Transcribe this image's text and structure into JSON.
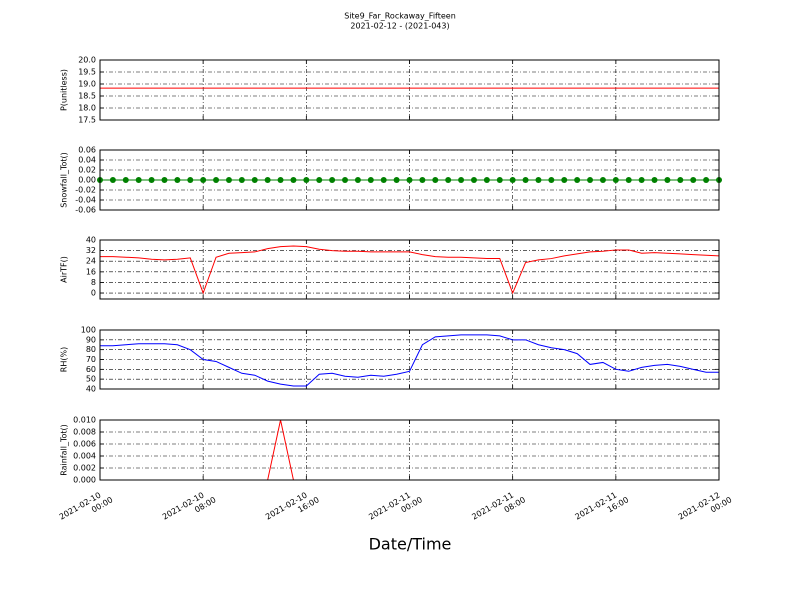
{
  "chart_data": [
    {
      "type": "line",
      "title": "Site9_Far_Rockaway_Fifteen",
      "subtitle": "2021-02-12 - (2021-043)",
      "ylabel": "P(unitless)",
      "color": "#ff0000",
      "grid": true,
      "ylim": [
        17.5,
        20
      ],
      "yticks": [
        17.5,
        {
          "value": 18,
          "label": "18.0"
        },
        18.5,
        {
          "value": 19,
          "label": "19.0"
        },
        19.5,
        {
          "value": 20,
          "label": "20.0"
        }
      ],
      "x": [
        "2021-02-10 00:00",
        "2021-02-10 01:00",
        "2021-02-10 02:00",
        "2021-02-10 03:00",
        "2021-02-10 04:00",
        "2021-02-10 05:00",
        "2021-02-10 06:00",
        "2021-02-10 07:00",
        "2021-02-10 08:00",
        "2021-02-10 09:00",
        "2021-02-10 10:00",
        "2021-02-10 11:00",
        "2021-02-10 12:00",
        "2021-02-10 13:00",
        "2021-02-10 14:00",
        "2021-02-10 15:00",
        "2021-02-10 16:00",
        "2021-02-10 17:00",
        "2021-02-10 18:00",
        "2021-02-10 19:00",
        "2021-02-10 20:00",
        "2021-02-10 21:00",
        "2021-02-10 22:00",
        "2021-02-10 23:00",
        "2021-02-11 00:00",
        "2021-02-11 01:00",
        "2021-02-11 02:00",
        "2021-02-11 03:00",
        "2021-02-11 04:00",
        "2021-02-11 05:00",
        "2021-02-11 06:00",
        "2021-02-11 07:00",
        "2021-02-11 08:00",
        "2021-02-11 09:00",
        "2021-02-11 10:00",
        "2021-02-11 11:00",
        "2021-02-11 12:00",
        "2021-02-11 13:00",
        "2021-02-11 14:00",
        "2021-02-11 15:00",
        "2021-02-11 16:00",
        "2021-02-11 17:00",
        "2021-02-11 18:00",
        "2021-02-11 19:00",
        "2021-02-11 20:00",
        "2021-02-11 21:00",
        "2021-02-11 22:00",
        "2021-02-11 23:00",
        "2021-02-12 00:00"
      ],
      "values": [
        18.83,
        18.83,
        18.83,
        18.83,
        18.83,
        18.83,
        18.83,
        18.83,
        18.83,
        18.83,
        18.83,
        18.83,
        18.83,
        18.83,
        18.83,
        18.83,
        18.83,
        18.83,
        18.83,
        18.83,
        18.83,
        18.83,
        18.83,
        18.83,
        18.83,
        18.83,
        18.83,
        18.83,
        18.83,
        18.83,
        18.83,
        18.83,
        18.83,
        18.83,
        18.83,
        18.83,
        18.83,
        18.83,
        18.83,
        18.83,
        18.83,
        18.83,
        18.83,
        18.83,
        18.83,
        18.83,
        18.83,
        18.83,
        18.83
      ]
    },
    {
      "type": "line",
      "marker": true,
      "ylabel": "Snowfall_Tot()",
      "color": "#008000",
      "grid": true,
      "ylim": [
        -0.06,
        0.06
      ],
      "yticks": [
        -0.06,
        -0.04,
        -0.02,
        {
          "value": 0,
          "label": "0.00"
        },
        0.02,
        0.04,
        0.06
      ],
      "x": [
        "2021-02-10 00:00",
        "2021-02-10 01:00",
        "2021-02-10 02:00",
        "2021-02-10 03:00",
        "2021-02-10 04:00",
        "2021-02-10 05:00",
        "2021-02-10 06:00",
        "2021-02-10 07:00",
        "2021-02-10 08:00",
        "2021-02-10 09:00",
        "2021-02-10 10:00",
        "2021-02-10 11:00",
        "2021-02-10 12:00",
        "2021-02-10 13:00",
        "2021-02-10 14:00",
        "2021-02-10 15:00",
        "2021-02-10 16:00",
        "2021-02-10 17:00",
        "2021-02-10 18:00",
        "2021-02-10 19:00",
        "2021-02-10 20:00",
        "2021-02-10 21:00",
        "2021-02-10 22:00",
        "2021-02-10 23:00",
        "2021-02-11 00:00",
        "2021-02-11 01:00",
        "2021-02-11 02:00",
        "2021-02-11 03:00",
        "2021-02-11 04:00",
        "2021-02-11 05:00",
        "2021-02-11 06:00",
        "2021-02-11 07:00",
        "2021-02-11 08:00",
        "2021-02-11 09:00",
        "2021-02-11 10:00",
        "2021-02-11 11:00",
        "2021-02-11 12:00",
        "2021-02-11 13:00",
        "2021-02-11 14:00",
        "2021-02-11 15:00",
        "2021-02-11 16:00",
        "2021-02-11 17:00",
        "2021-02-11 18:00",
        "2021-02-11 19:00",
        "2021-02-11 20:00",
        "2021-02-11 21:00",
        "2021-02-11 22:00",
        "2021-02-11 23:00",
        "2021-02-12 00:00"
      ],
      "values": [
        0,
        0,
        0,
        0,
        0,
        0,
        0,
        0,
        0,
        0,
        0,
        0,
        0,
        0,
        0,
        0,
        0,
        0,
        0,
        0,
        0,
        0,
        0,
        0,
        0,
        0,
        0,
        0,
        0,
        0,
        0,
        0,
        0,
        0,
        0,
        0,
        0,
        0,
        0,
        0,
        0,
        0,
        0,
        0,
        0,
        0,
        0,
        0,
        0
      ]
    },
    {
      "type": "line",
      "ylabel": "AirTF()",
      "color": "#ff0000",
      "grid": true,
      "ylim": [
        -4.5,
        40
      ],
      "yticks": [
        0,
        8,
        16,
        24,
        32,
        40
      ],
      "x": [
        "2021-02-10 00:00",
        "2021-02-10 01:00",
        "2021-02-10 02:00",
        "2021-02-10 03:00",
        "2021-02-10 04:00",
        "2021-02-10 05:00",
        "2021-02-10 06:00",
        "2021-02-10 07:00",
        "2021-02-10 08:00",
        "2021-02-10 09:00",
        "2021-02-10 10:00",
        "2021-02-10 11:00",
        "2021-02-10 12:00",
        "2021-02-10 13:00",
        "2021-02-10 14:00",
        "2021-02-10 15:00",
        "2021-02-10 16:00",
        "2021-02-10 17:00",
        "2021-02-10 18:00",
        "2021-02-10 19:00",
        "2021-02-10 20:00",
        "2021-02-10 21:00",
        "2021-02-10 22:00",
        "2021-02-10 23:00",
        "2021-02-11 00:00",
        "2021-02-11 01:00",
        "2021-02-11 02:00",
        "2021-02-11 03:00",
        "2021-02-11 04:00",
        "2021-02-11 05:00",
        "2021-02-11 06:00",
        "2021-02-11 07:00",
        "2021-02-11 08:00",
        "2021-02-11 09:00",
        "2021-02-11 10:00",
        "2021-02-11 11:00",
        "2021-02-11 12:00",
        "2021-02-11 13:00",
        "2021-02-11 14:00",
        "2021-02-11 15:00",
        "2021-02-11 16:00",
        "2021-02-11 17:00",
        "2021-02-11 18:00",
        "2021-02-11 19:00",
        "2021-02-11 20:00",
        "2021-02-11 21:00",
        "2021-02-11 22:00",
        "2021-02-11 23:00",
        "2021-02-12 00:00"
      ],
      "values": [
        27.5,
        27.5,
        27,
        26.5,
        25.5,
        25,
        25.5,
        26.5,
        0,
        27,
        30,
        30.5,
        31,
        33.5,
        35,
        35.5,
        35,
        33,
        32,
        31.5,
        31.5,
        31,
        31,
        31,
        31,
        29,
        27.5,
        27,
        27,
        26.5,
        26,
        26,
        0,
        23,
        25,
        26,
        28,
        29.5,
        31,
        31.5,
        32.5,
        32.5,
        30,
        30.5,
        30,
        29.5,
        29,
        28.5,
        28
      ]
    },
    {
      "type": "line",
      "ylabel": "RH(%)",
      "color": "#0000ff",
      "grid": true,
      "ylim": [
        40,
        100
      ],
      "yticks": [
        40,
        50,
        60,
        70,
        80,
        90,
        100
      ],
      "x": [
        "2021-02-10 00:00",
        "2021-02-10 01:00",
        "2021-02-10 02:00",
        "2021-02-10 03:00",
        "2021-02-10 04:00",
        "2021-02-10 05:00",
        "2021-02-10 06:00",
        "2021-02-10 07:00",
        "2021-02-10 08:00",
        "2021-02-10 09:00",
        "2021-02-10 10:00",
        "2021-02-10 11:00",
        "2021-02-10 12:00",
        "2021-02-10 13:00",
        "2021-02-10 14:00",
        "2021-02-10 15:00",
        "2021-02-10 16:00",
        "2021-02-10 17:00",
        "2021-02-10 18:00",
        "2021-02-10 19:00",
        "2021-02-10 20:00",
        "2021-02-10 21:00",
        "2021-02-10 22:00",
        "2021-02-10 23:00",
        "2021-02-11 00:00",
        "2021-02-11 01:00",
        "2021-02-11 02:00",
        "2021-02-11 03:00",
        "2021-02-11 04:00",
        "2021-02-11 05:00",
        "2021-02-11 06:00",
        "2021-02-11 07:00",
        "2021-02-11 08:00",
        "2021-02-11 09:00",
        "2021-02-11 10:00",
        "2021-02-11 11:00",
        "2021-02-11 12:00",
        "2021-02-11 13:00",
        "2021-02-11 14:00",
        "2021-02-11 15:00",
        "2021-02-11 16:00",
        "2021-02-11 17:00",
        "2021-02-11 18:00",
        "2021-02-11 19:00",
        "2021-02-11 20:00",
        "2021-02-11 21:00",
        "2021-02-11 22:00",
        "2021-02-11 23:00",
        "2021-02-12 00:00"
      ],
      "values": [
        84,
        84,
        85,
        86,
        86,
        86,
        85,
        80,
        70,
        68,
        62,
        56,
        54,
        48,
        45,
        43,
        43,
        55,
        56,
        53,
        52,
        54,
        53,
        55,
        58,
        85,
        93,
        94,
        95,
        95,
        95,
        94,
        90,
        90,
        85,
        82,
        80,
        76,
        65,
        67,
        60,
        58,
        62,
        64,
        65,
        63,
        60,
        57,
        57
      ]
    },
    {
      "type": "line",
      "ylabel": "Rainfall_Tot()",
      "xlabel": "Date/Time",
      "color": "#ff0000",
      "grid": true,
      "ylim": [
        0,
        0.01
      ],
      "yticks": [
        {
          "value": 0,
          "label": "0.000"
        },
        0.002,
        0.004,
        0.006,
        0.008,
        {
          "value": 0.01,
          "label": "0.010"
        }
      ],
      "xlim": [
        "2021-02-10 00:00",
        "2021-02-12 00:00"
      ],
      "xticks": [
        {
          "value": "2021-02-10 00:00",
          "label": "2021-02-10 00:00"
        },
        {
          "value": "2021-02-10 08:00",
          "label": "2021-02-10 08:00"
        },
        {
          "value": "2021-02-10 16:00",
          "label": "2021-02-10 16:00"
        },
        {
          "value": "2021-02-11 00:00",
          "label": "2021-02-11 00:00"
        },
        {
          "value": "2021-02-11 08:00",
          "label": "2021-02-11 08:00"
        },
        {
          "value": "2021-02-11 16:00",
          "label": "2021-02-11 16:00"
        },
        {
          "value": "2021-02-12 00:00",
          "label": "2021-02-12 00:00"
        }
      ],
      "x": [
        "2021-02-10 00:00",
        "2021-02-10 01:00",
        "2021-02-10 02:00",
        "2021-02-10 03:00",
        "2021-02-10 04:00",
        "2021-02-10 05:00",
        "2021-02-10 06:00",
        "2021-02-10 07:00",
        "2021-02-10 08:00",
        "2021-02-10 09:00",
        "2021-02-10 10:00",
        "2021-02-10 11:00",
        "2021-02-10 12:00",
        "2021-02-10 13:00",
        "2021-02-10 14:00",
        "2021-02-10 15:00",
        "2021-02-10 16:00",
        "2021-02-10 17:00",
        "2021-02-10 18:00",
        "2021-02-10 19:00",
        "2021-02-10 20:00",
        "2021-02-10 21:00",
        "2021-02-10 22:00",
        "2021-02-10 23:00",
        "2021-02-11 00:00",
        "2021-02-11 01:00",
        "2021-02-11 02:00",
        "2021-02-11 03:00",
        "2021-02-11 04:00",
        "2021-02-11 05:00",
        "2021-02-11 06:00",
        "2021-02-11 07:00",
        "2021-02-11 08:00",
        "2021-02-11 09:00",
        "2021-02-11 10:00",
        "2021-02-11 11:00",
        "2021-02-11 12:00",
        "2021-02-11 13:00",
        "2021-02-11 14:00",
        "2021-02-11 15:00",
        "2021-02-11 16:00",
        "2021-02-11 17:00",
        "2021-02-11 18:00",
        "2021-02-11 19:00",
        "2021-02-11 20:00",
        "2021-02-11 21:00",
        "2021-02-11 22:00",
        "2021-02-11 23:00",
        "2021-02-12 00:00"
      ],
      "values": [
        0,
        0,
        0,
        0,
        0,
        0,
        0,
        0,
        0,
        0,
        0,
        0,
        0,
        0,
        0.01,
        0,
        0,
        0,
        0,
        0,
        0,
        0,
        0,
        0,
        0,
        0,
        0,
        0,
        0,
        0,
        0,
        0,
        0,
        0,
        0,
        0,
        0,
        0,
        0,
        0,
        0,
        0,
        0,
        0,
        0,
        0,
        0,
        0,
        0
      ]
    }
  ]
}
